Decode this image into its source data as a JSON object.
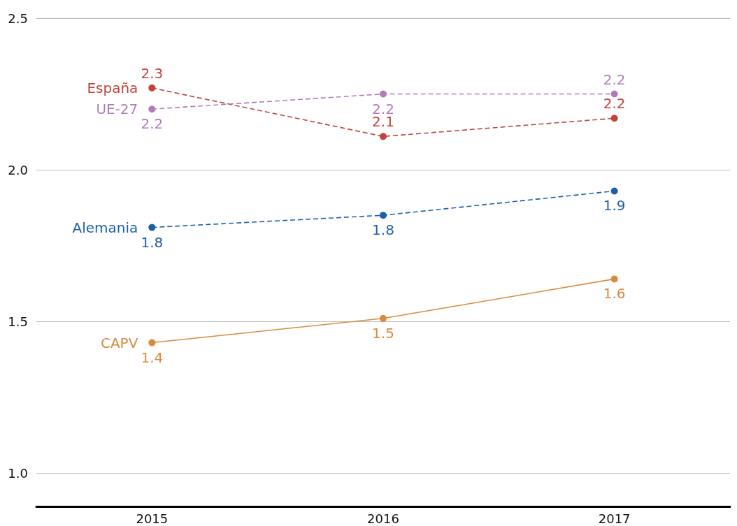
{
  "chart_data": {
    "type": "line",
    "categories": [
      "2015",
      "2016",
      "2017"
    ],
    "series": [
      {
        "name": "España",
        "color": "#c0443c",
        "line_style": "dashed",
        "values": [
          2.27,
          2.11,
          2.17
        ],
        "value_labels": [
          "2.3",
          "2.1",
          "2.2"
        ]
      },
      {
        "name": "UE-27",
        "color": "#b07cb8",
        "line_style": "dashed",
        "values": [
          2.2,
          2.25,
          2.25
        ],
        "value_labels": [
          "2.2",
          "2.2",
          "2.2"
        ]
      },
      {
        "name": "Alemania",
        "color": "#1f5fa8",
        "line_style": "dashed",
        "values": [
          1.81,
          1.85,
          1.93
        ],
        "value_labels": [
          "1.8",
          "1.8",
          "1.9"
        ]
      },
      {
        "name": "CAPV",
        "color": "#d98a3d",
        "line_style": "solid",
        "values": [
          1.43,
          1.51,
          1.64
        ],
        "value_labels": [
          "1.4",
          "1.5",
          "1.6"
        ]
      }
    ],
    "ylim": [
      0.89,
      2.5
    ],
    "yticks": [
      {
        "value": 1,
        "label": "1.0"
      },
      1.5,
      {
        "value": 2,
        "label": "2.0"
      },
      2.5
    ],
    "grid": "y",
    "legend": false,
    "marker": "circle"
  }
}
